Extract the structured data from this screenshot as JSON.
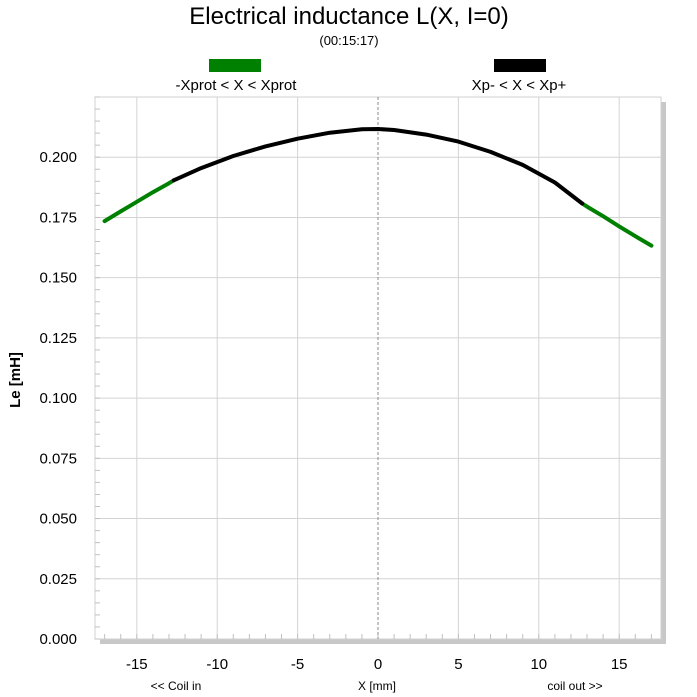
{
  "chart_data": {
    "type": "line",
    "title": "Electrical inductance L(X, I=0)",
    "subtitle": "(00:15:17)",
    "ylabel": "Le [mH]",
    "xlabel": "X [mm]",
    "x_left_note": "<< Coil in",
    "x_right_note": "coil out >>",
    "xlim": [
      -17.6,
      17.6
    ],
    "ylim": [
      0,
      0.225
    ],
    "x_ticks": [
      -15,
      -10,
      -5,
      0,
      5,
      10,
      15
    ],
    "x_tick_labels": [
      "-15",
      "-10",
      "-5",
      "0",
      "5",
      "10",
      "15"
    ],
    "y_ticks": [
      0.0,
      0.025,
      0.05,
      0.075,
      0.1,
      0.125,
      0.15,
      0.175,
      0.2
    ],
    "y_tick_labels": [
      "0.000",
      "0.025",
      "0.050",
      "0.075",
      "0.100",
      "0.125",
      "0.150",
      "0.175",
      "0.200"
    ],
    "grid": true,
    "zero_line_x": 0,
    "legend_placement": "top",
    "legend": [
      {
        "label": "-Xprot < X < Xprot",
        "color": "#008000"
      },
      {
        "label": "Xp- < X < Xp+",
        "color": "#000000"
      }
    ],
    "series": [
      {
        "name": "-Xprot < X < Xprot",
        "color": "#008000",
        "segments": [
          {
            "x": [
              -17.0,
              -16.0,
              -15.0,
              -14.0,
              -13.0,
              -12.7
            ],
            "y": [
              0.1735,
              0.1775,
              0.1815,
              0.1855,
              0.1892,
              0.1904
            ]
          },
          {
            "x": [
              12.7,
              13.0,
              14.0,
              15.0,
              16.0,
              17.0
            ],
            "y": [
              0.1808,
              0.1795,
              0.1755,
              0.1713,
              0.1672,
              0.1633
            ]
          }
        ]
      },
      {
        "name": "Xp- < X < Xp+",
        "color": "#000000",
        "segments": [
          {
            "x": [
              -12.7,
              -11.0,
              -9.0,
              -7.0,
              -5.0,
              -3.0,
              -1.0,
              0.0,
              1.0,
              3.0,
              5.0,
              7.0,
              9.0,
              11.0,
              12.7
            ],
            "y": [
              0.1904,
              0.1955,
              0.2005,
              0.2045,
              0.2077,
              0.2102,
              0.2116,
              0.2117,
              0.2113,
              0.2094,
              0.2065,
              0.2022,
              0.1968,
              0.1895,
              0.1808
            ]
          }
        ]
      }
    ]
  }
}
